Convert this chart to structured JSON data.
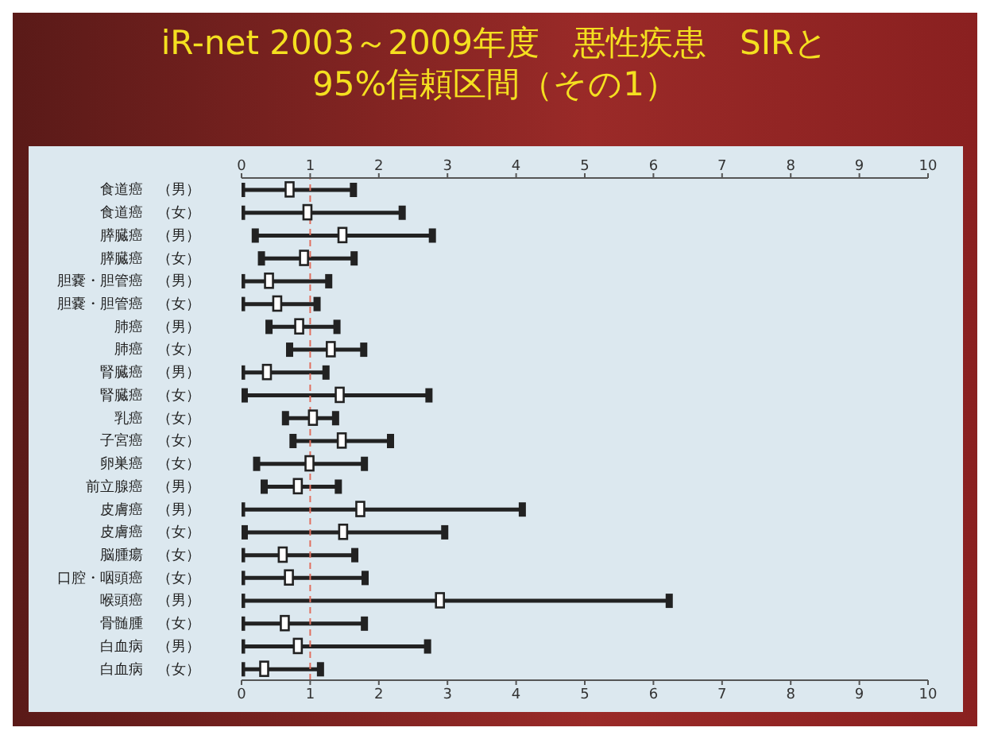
{
  "chart_data": {
    "type": "scatter",
    "orientation": "horizontal",
    "title": "iR-net 2003～2009年度　悪性疾患　SIRと\n95%信頼区間（その1）",
    "categories": [
      "食道癌　（男）",
      "食道癌　（女）",
      "膵臓癌　（男）",
      "膵臓癌　（女）",
      "胆嚢・胆管癌　（男）",
      "胆嚢・胆管癌　（女）",
      "肺癌　（男）",
      "肺癌　（女）",
      "腎臓癌　（男）",
      "腎臓癌　（女）",
      "乳癌　（女）",
      "子宮癌　（女）",
      "卵巣癌　（女）",
      "前立腺癌　（男）",
      "皮膚癌　（男）",
      "皮膚癌　（女）",
      "脳腫瘍　（女）",
      "口腔・咽頭癌　（女）",
      "喉頭癌　（男）",
      "骨髄腫　（女）",
      "白血病　（男）",
      "白血病　（女）"
    ],
    "values": [
      0.7,
      0.96,
      1.47,
      0.91,
      0.4,
      0.52,
      0.84,
      1.3,
      0.37,
      1.43,
      1.04,
      1.46,
      0.99,
      0.82,
      1.73,
      1.48,
      0.6,
      0.69,
      2.89,
      0.63,
      0.82,
      0.33
    ],
    "errors": [
      [
        0,
        1.63
      ],
      [
        0,
        2.34
      ],
      [
        0.2,
        2.78
      ],
      [
        0.29,
        1.64
      ],
      [
        0,
        1.27
      ],
      [
        0,
        1.1
      ],
      [
        0.4,
        1.39
      ],
      [
        0.7,
        1.78
      ],
      [
        0,
        1.23
      ],
      [
        0.04,
        2.73
      ],
      [
        0.64,
        1.37
      ],
      [
        0.75,
        2.17
      ],
      [
        0.22,
        1.79
      ],
      [
        0.33,
        1.41
      ],
      [
        0,
        4.09
      ],
      [
        0.04,
        2.96
      ],
      [
        0,
        1.65
      ],
      [
        0,
        1.8
      ],
      [
        0,
        6.23
      ],
      [
        0,
        1.79
      ],
      [
        0,
        2.71
      ],
      [
        0,
        1.15
      ]
    ],
    "color": "#222222",
    "marker": "square",
    "xlim": [
      0,
      10
    ],
    "xticks": [
      0,
      1,
      2,
      3,
      4,
      5,
      6,
      7,
      8,
      9,
      10
    ],
    "x2lim": [
      0,
      10
    ],
    "x2ticks": [
      0,
      1,
      2,
      3,
      4,
      5,
      6,
      7,
      8,
      9,
      10
    ],
    "ref_lines": [
      {
        "axis": "x",
        "value": 1,
        "color": "#e07060",
        "line_style": "dashed"
      }
    ],
    "grid": false
  }
}
